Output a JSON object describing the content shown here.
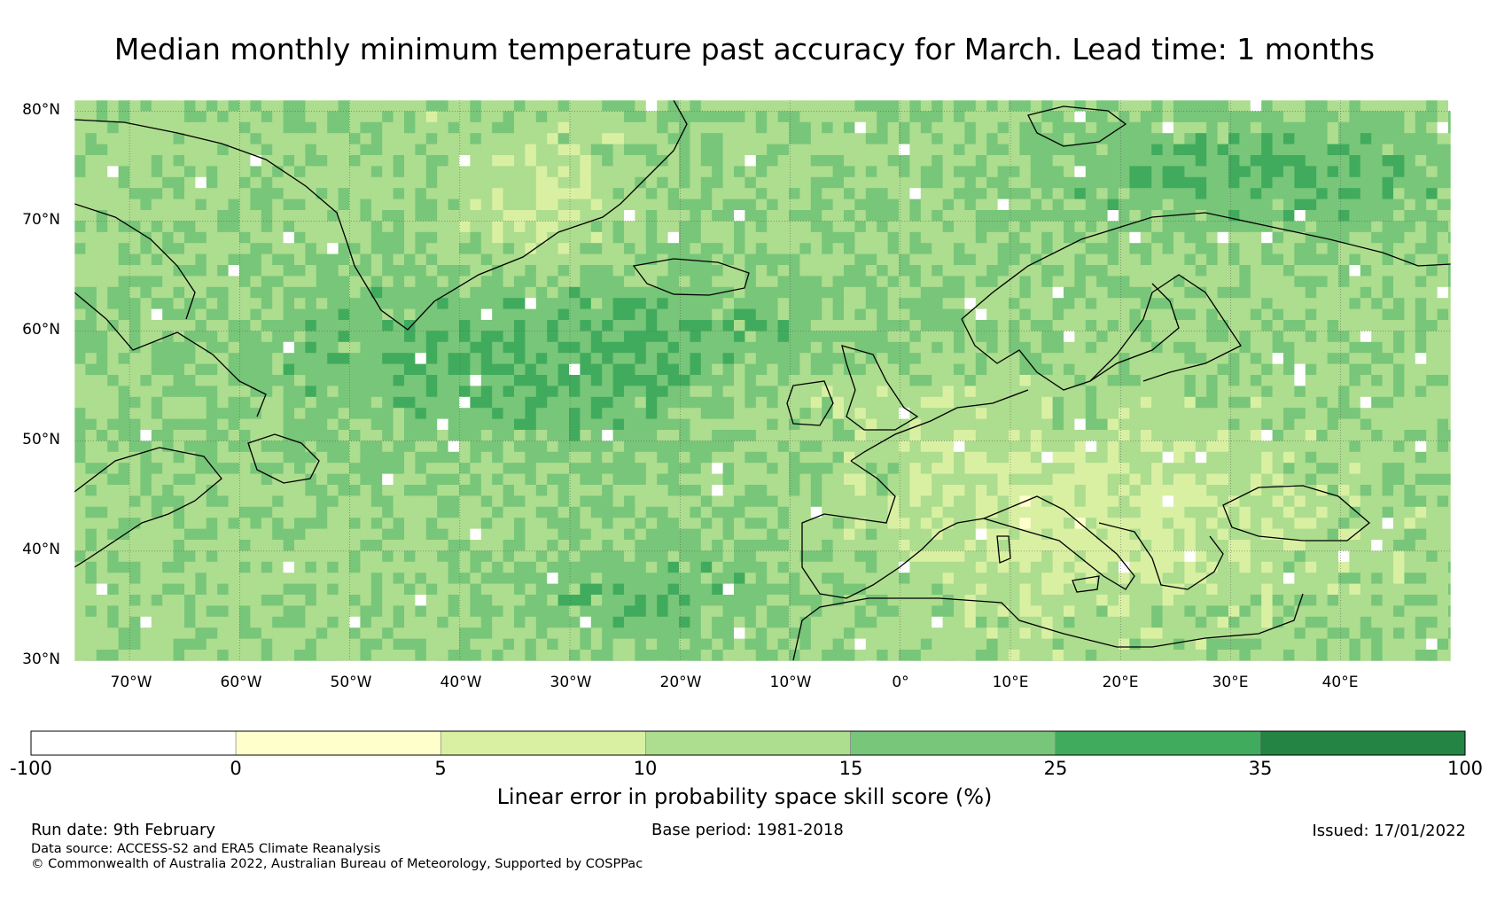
{
  "title": "Median monthly minimum temperature past accuracy for March. Lead time: 1 months",
  "map": {
    "lat_labels": [
      "80°N",
      "70°N",
      "60°N",
      "50°N",
      "40°N",
      "30°N"
    ],
    "lon_labels": [
      "70°W",
      "60°W",
      "50°W",
      "40°W",
      "30°W",
      "20°W",
      "10°W",
      "0°",
      "10°E",
      "20°E",
      "30°E",
      "40°E"
    ],
    "extent": {
      "lon_min": -75,
      "lon_max": 50,
      "lat_min": 30,
      "lat_max": 81
    }
  },
  "colorbar": {
    "ticks": [
      "-100",
      "0",
      "5",
      "10",
      "15",
      "25",
      "35",
      "100"
    ],
    "colors": [
      "#ffffff",
      "#ffffcc",
      "#d9f0a3",
      "#addd8e",
      "#78c679",
      "#41ab5d",
      "#238443"
    ],
    "label": "Linear error in probability space skill score (%)"
  },
  "footer": {
    "run_date": "Run date: 9th February",
    "base_period": "Base period: 1981-2018",
    "issued": "Issued: 17/01/2022",
    "data_source": "Data source: ACCESS-S2 and ERA5 Climate Reanalysis",
    "copyright": "© Commonwealth of Australia 2022, Australian Bureau of Meteorology, Supported by COSPPac"
  }
}
